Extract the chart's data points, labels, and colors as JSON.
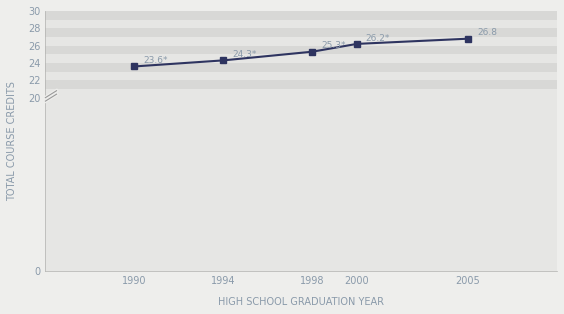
{
  "x": [
    1990,
    1994,
    1998,
    2000,
    2005
  ],
  "y": [
    23.6,
    24.3,
    25.3,
    26.2,
    26.8
  ],
  "labels": [
    "23.6*",
    "24.3*",
    "25.3*",
    "26.2*",
    "26.8"
  ],
  "xlabel": "HIGH SCHOOL GRADUATION YEAR",
  "ylabel": "TOTAL COURSE CREDITS",
  "line_color": "#2e3460",
  "marker_color": "#2e3460",
  "label_color": "#8a9aaa",
  "bg_color": "#eeeeec",
  "stripe_light": "#e6e6e4",
  "stripe_dark": "#d8d8d6",
  "tick_fontsize": 7,
  "axis_label_fontsize": 7
}
